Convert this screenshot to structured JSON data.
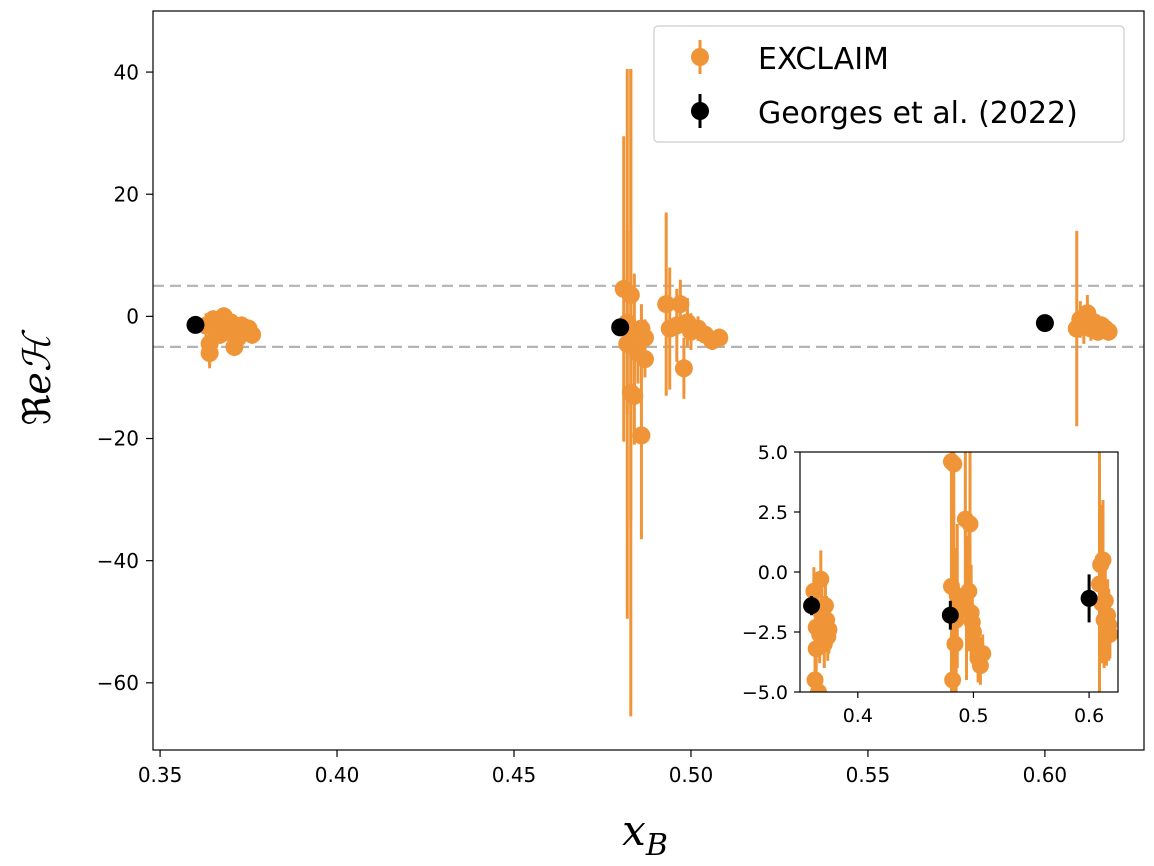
{
  "chart_data": [
    {
      "type": "scatter",
      "title": "",
      "xlabel": "x_B",
      "ylabel": "ReH",
      "xlim": [
        0.348,
        0.628
      ],
      "ylim": [
        -71,
        50
      ],
      "xticks": [
        "0.35",
        "0.40",
        "0.45",
        "0.50",
        "0.55",
        "0.60"
      ],
      "xtick_values": [
        0.35,
        0.4,
        0.45,
        0.5,
        0.55,
        0.6
      ],
      "yticks": [
        "−60",
        "−40",
        "−20",
        "0",
        "20",
        "40"
      ],
      "ytick_values": [
        -60,
        -40,
        -20,
        0,
        20,
        40
      ],
      "grid": false,
      "legend_position": "top-right",
      "reference_lines": [
        5,
        -5
      ],
      "series": [
        {
          "name": "EXCLAIM",
          "color": "#f09438",
          "points": [
            {
              "x": 0.363,
              "y": -1.5,
              "err": 2.0
            },
            {
              "x": 0.364,
              "y": -4.5,
              "err": 3.5
            },
            {
              "x": 0.364,
              "y": -6.0,
              "err": 2.5
            },
            {
              "x": 0.365,
              "y": -0.5,
              "err": 1.5
            },
            {
              "x": 0.366,
              "y": -2.0,
              "err": 1.5
            },
            {
              "x": 0.367,
              "y": -3.0,
              "err": 1.5
            },
            {
              "x": 0.368,
              "y": 0.0,
              "err": 1.5
            },
            {
              "x": 0.369,
              "y": -2.5,
              "err": 1.5
            },
            {
              "x": 0.37,
              "y": -1.0,
              "err": 1.5
            },
            {
              "x": 0.371,
              "y": -5.0,
              "err": 1.5
            },
            {
              "x": 0.372,
              "y": -3.5,
              "err": 1.5
            },
            {
              "x": 0.373,
              "y": -1.5,
              "err": 1.5
            },
            {
              "x": 0.374,
              "y": -2.5,
              "err": 1.5
            },
            {
              "x": 0.375,
              "y": -2.0,
              "err": 1.5
            },
            {
              "x": 0.376,
              "y": -3.0,
              "err": 1.5
            },
            {
              "x": 0.481,
              "y": 4.5,
              "err": 25.0
            },
            {
              "x": 0.482,
              "y": -4.5,
              "err": 45.0
            },
            {
              "x": 0.482,
              "y": -1.0,
              "err": 15.0
            },
            {
              "x": 0.483,
              "y": -12.5,
              "err": 53.0
            },
            {
              "x": 0.483,
              "y": 3.5,
              "err": 37.0
            },
            {
              "x": 0.484,
              "y": -13.0,
              "err": 8.0
            },
            {
              "x": 0.484,
              "y": -3.0,
              "err": 10.0
            },
            {
              "x": 0.485,
              "y": -6.0,
              "err": 5.0
            },
            {
              "x": 0.486,
              "y": -19.5,
              "err": 17.0
            },
            {
              "x": 0.486,
              "y": -2.0,
              "err": 4.0
            },
            {
              "x": 0.487,
              "y": -3.5,
              "err": 3.0
            },
            {
              "x": 0.487,
              "y": -7.0,
              "err": 3.0
            },
            {
              "x": 0.493,
              "y": 2.0,
              "err": 15.0
            },
            {
              "x": 0.494,
              "y": -2.0,
              "err": 10.0
            },
            {
              "x": 0.496,
              "y": -1.5,
              "err": 6.0
            },
            {
              "x": 0.497,
              "y": 2.0,
              "err": 4.0
            },
            {
              "x": 0.498,
              "y": -8.5,
              "err": 5.0
            },
            {
              "x": 0.499,
              "y": -1.0,
              "err": 4.0
            },
            {
              "x": 0.5,
              "y": -2.5,
              "err": 3.0
            },
            {
              "x": 0.502,
              "y": -2.0,
              "err": 2.0
            },
            {
              "x": 0.504,
              "y": -3.0,
              "err": 1.5
            },
            {
              "x": 0.506,
              "y": -4.0,
              "err": 1.5
            },
            {
              "x": 0.508,
              "y": -3.5,
              "err": 1.5
            },
            {
              "x": 0.609,
              "y": -2.0,
              "err": 16.0
            },
            {
              "x": 0.61,
              "y": -0.5,
              "err": 3.0
            },
            {
              "x": 0.611,
              "y": -1.5,
              "err": 3.0
            },
            {
              "x": 0.612,
              "y": 0.5,
              "err": 3.0
            },
            {
              "x": 0.613,
              "y": -2.0,
              "err": 2.0
            },
            {
              "x": 0.614,
              "y": -1.0,
              "err": 2.0
            },
            {
              "x": 0.615,
              "y": -2.5,
              "err": 1.5
            },
            {
              "x": 0.616,
              "y": -1.5,
              "err": 1.5
            },
            {
              "x": 0.617,
              "y": -2.0,
              "err": 1.5
            },
            {
              "x": 0.618,
              "y": -2.5,
              "err": 1.5
            }
          ]
        },
        {
          "name": "Georges et al. (2022)",
          "color": "#000000",
          "points": [
            {
              "x": 0.36,
              "y": -1.4,
              "err": 0.4
            },
            {
              "x": 0.48,
              "y": -1.8,
              "err": 0.6
            },
            {
              "x": 0.6,
              "y": -1.1,
              "err": 1.0
            }
          ]
        }
      ]
    },
    {
      "type": "scatter",
      "title": "",
      "xlim": [
        0.35,
        0.625
      ],
      "ylim": [
        -5,
        5
      ],
      "xticks": [
        "0.4",
        "0.5",
        "0.6"
      ],
      "xtick_values": [
        0.4,
        0.5,
        0.6
      ],
      "yticks": [
        "−5.0",
        "−2.5",
        "0.0",
        "2.5",
        "5.0"
      ],
      "ytick_values": [
        -5.0,
        -2.5,
        0.0,
        2.5,
        5.0
      ],
      "grid": false,
      "legend_position": "none",
      "series": [
        {
          "name": "EXCLAIM",
          "color": "#f09438",
          "points": [
            {
              "x": 0.362,
              "y": -0.8,
              "err": 1.0
            },
            {
              "x": 0.363,
              "y": -4.5,
              "err": 1.0
            },
            {
              "x": 0.364,
              "y": -2.3,
              "err": 1.2
            },
            {
              "x": 0.364,
              "y": -3.2,
              "err": 1.0
            },
            {
              "x": 0.365,
              "y": -1.5,
              "err": 1.5
            },
            {
              "x": 0.366,
              "y": -5.0,
              "err": 0.8
            },
            {
              "x": 0.367,
              "y": -2.6,
              "err": 1.2
            },
            {
              "x": 0.368,
              "y": -0.3,
              "err": 1.2
            },
            {
              "x": 0.369,
              "y": -1.8,
              "err": 1.2
            },
            {
              "x": 0.37,
              "y": -2.2,
              "err": 1.2
            },
            {
              "x": 0.371,
              "y": -3.0,
              "err": 1.0
            },
            {
              "x": 0.372,
              "y": -1.4,
              "err": 1.0
            },
            {
              "x": 0.373,
              "y": -2.0,
              "err": 1.0
            },
            {
              "x": 0.374,
              "y": -2.7,
              "err": 1.0
            },
            {
              "x": 0.375,
              "y": -2.4,
              "err": 1.0
            },
            {
              "x": 0.481,
              "y": 4.6,
              "err": 8.0
            },
            {
              "x": 0.481,
              "y": -0.6,
              "err": 6.0
            },
            {
              "x": 0.482,
              "y": -4.5,
              "err": 6.0
            },
            {
              "x": 0.483,
              "y": 4.5,
              "err": 6.0
            },
            {
              "x": 0.484,
              "y": -3.0,
              "err": 4.0
            },
            {
              "x": 0.485,
              "y": -2.0,
              "err": 3.0
            },
            {
              "x": 0.486,
              "y": -1.0,
              "err": 3.0
            },
            {
              "x": 0.493,
              "y": 2.2,
              "err": 4.0
            },
            {
              "x": 0.494,
              "y": -1.5,
              "err": 3.0
            },
            {
              "x": 0.496,
              "y": -0.8,
              "err": 2.5
            },
            {
              "x": 0.497,
              "y": 2.0,
              "err": 3.0
            },
            {
              "x": 0.498,
              "y": -1.7,
              "err": 2.0
            },
            {
              "x": 0.499,
              "y": -2.1,
              "err": 1.5
            },
            {
              "x": 0.5,
              "y": -2.5,
              "err": 1.0
            },
            {
              "x": 0.502,
              "y": -3.0,
              "err": 1.0
            },
            {
              "x": 0.504,
              "y": -3.6,
              "err": 1.0
            },
            {
              "x": 0.506,
              "y": -3.9,
              "err": 0.8
            },
            {
              "x": 0.508,
              "y": -3.4,
              "err": 0.8
            },
            {
              "x": 0.609,
              "y": -0.5,
              "err": 5.5
            },
            {
              "x": 0.61,
              "y": 0.3,
              "err": 2.5
            },
            {
              "x": 0.611,
              "y": -1.3,
              "err": 2.5
            },
            {
              "x": 0.612,
              "y": 0.5,
              "err": 2.5
            },
            {
              "x": 0.613,
              "y": -2.0,
              "err": 2.0
            },
            {
              "x": 0.614,
              "y": -1.2,
              "err": 2.0
            },
            {
              "x": 0.615,
              "y": -2.4,
              "err": 1.5
            },
            {
              "x": 0.616,
              "y": -1.8,
              "err": 1.5
            },
            {
              "x": 0.617,
              "y": -2.2,
              "err": 1.5
            },
            {
              "x": 0.618,
              "y": -2.6,
              "err": 1.0
            }
          ]
        },
        {
          "name": "Georges et al. (2022)",
          "color": "#000000",
          "points": [
            {
              "x": 0.36,
              "y": -1.4,
              "err": 0.4
            },
            {
              "x": 0.48,
              "y": -1.8,
              "err": 0.6
            },
            {
              "x": 0.6,
              "y": -1.1,
              "err": 1.0
            }
          ]
        }
      ]
    }
  ]
}
